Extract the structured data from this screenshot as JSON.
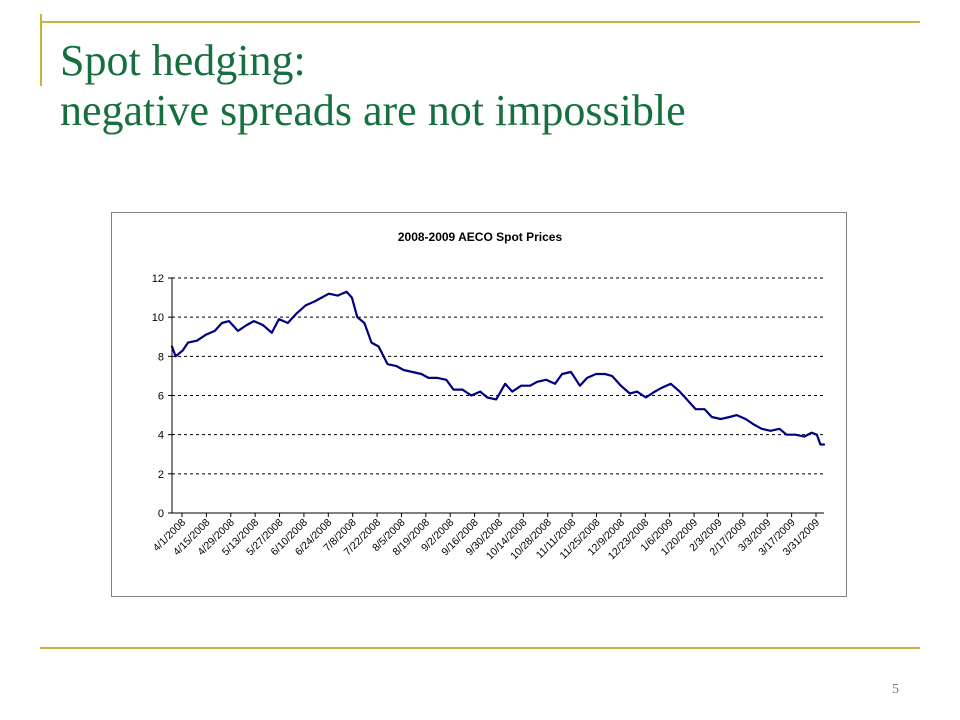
{
  "slide": {
    "title_line1": "Spot hedging:",
    "title_line2": "negative spreads are not impossible",
    "page_number": "5"
  },
  "colors": {
    "accent": "#c8b43c",
    "title": "#16703e",
    "series": "#000080"
  },
  "chart_data": {
    "type": "line",
    "title": "2008-2009 AECO Spot Prices",
    "xlabel": "",
    "ylabel": "",
    "ylim": [
      0,
      12
    ],
    "yticks": [
      "0",
      "2",
      "4",
      "6",
      "8",
      "10",
      "12"
    ],
    "grid": "horizontal dashed",
    "legend": "none",
    "x_tick_labels": [
      "4/1/2008",
      "4/15/2008",
      "4/29/2008",
      "5/13/2008",
      "5/27/2008",
      "6/10/2008",
      "6/24/2008",
      "7/8/2008",
      "7/22/2008",
      "8/5/2008",
      "8/19/2008",
      "9/2/2008",
      "9/16/2008",
      "9/30/2008",
      "10/14/2008",
      "10/28/2008",
      "11/11/2008",
      "11/25/2008",
      "12/9/2008",
      "12/23/2008",
      "1/6/2009",
      "1/20/2009",
      "2/3/2009",
      "2/17/2009",
      "3/3/2009",
      "3/17/2009",
      "3/31/2009"
    ],
    "x": [
      "2008-04-01",
      "2008-04-03",
      "2008-04-07",
      "2008-04-10",
      "2008-04-15",
      "2008-04-20",
      "2008-04-25",
      "2008-04-29",
      "2008-05-03",
      "2008-05-08",
      "2008-05-13",
      "2008-05-17",
      "2008-05-22",
      "2008-05-27",
      "2008-05-31",
      "2008-06-05",
      "2008-06-10",
      "2008-06-15",
      "2008-06-20",
      "2008-06-24",
      "2008-06-28",
      "2008-07-03",
      "2008-07-08",
      "2008-07-11",
      "2008-07-14",
      "2008-07-18",
      "2008-07-22",
      "2008-07-26",
      "2008-07-31",
      "2008-08-05",
      "2008-08-09",
      "2008-08-14",
      "2008-08-19",
      "2008-08-23",
      "2008-08-28",
      "2008-09-02",
      "2008-09-06",
      "2008-09-11",
      "2008-09-16",
      "2008-09-21",
      "2008-09-25",
      "2008-09-30",
      "2008-10-05",
      "2008-10-09",
      "2008-10-14",
      "2008-10-19",
      "2008-10-23",
      "2008-10-28",
      "2008-11-02",
      "2008-11-06",
      "2008-11-11",
      "2008-11-16",
      "2008-11-20",
      "2008-11-25",
      "2008-11-30",
      "2008-12-04",
      "2008-12-09",
      "2008-12-14",
      "2008-12-18",
      "2008-12-23",
      "2008-12-28",
      "2009-01-01",
      "2009-01-06",
      "2009-01-11",
      "2009-01-15",
      "2009-01-20",
      "2009-01-25",
      "2009-01-29",
      "2009-02-03",
      "2009-02-08",
      "2009-02-12",
      "2009-02-17",
      "2009-02-22",
      "2009-02-26",
      "2009-03-03",
      "2009-03-08",
      "2009-03-12",
      "2009-03-17",
      "2009-03-22",
      "2009-03-26",
      "2009-03-29",
      "2009-03-31",
      "2009-04-02"
    ],
    "series": [
      {
        "values": [
          8.5,
          8.0,
          8.3,
          8.7,
          8.8,
          9.1,
          9.3,
          9.7,
          9.8,
          9.3,
          9.6,
          9.8,
          9.6,
          9.2,
          9.9,
          9.7,
          10.2,
          10.6,
          10.8,
          11.0,
          11.2,
          11.1,
          11.3,
          11.0,
          10.0,
          9.7,
          8.7,
          8.5,
          7.6,
          7.5,
          7.3,
          7.2,
          7.1,
          6.9,
          6.9,
          6.8,
          6.3,
          6.3,
          6.0,
          6.2,
          5.9,
          5.8,
          6.6,
          6.2,
          6.5,
          6.5,
          6.7,
          6.8,
          6.6,
          7.1,
          7.2,
          6.5,
          6.9,
          7.1,
          7.1,
          7.0,
          6.5,
          6.1,
          6.2,
          5.9,
          6.2,
          6.4,
          6.6,
          6.2,
          5.8,
          5.3,
          5.3,
          4.9,
          4.8,
          4.9,
          5.0,
          4.8,
          4.5,
          4.3,
          4.2,
          4.3,
          4.0,
          4.0,
          3.9,
          4.1,
          4.0,
          3.5,
          3.5
        ]
      }
    ]
  }
}
